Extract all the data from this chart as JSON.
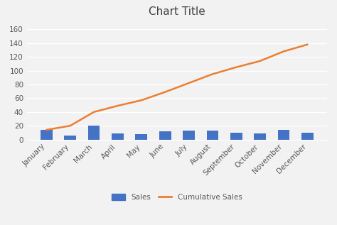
{
  "title": "Chart Title",
  "categories": [
    "January",
    "February",
    "March",
    "April",
    "May",
    "June",
    "July",
    "August",
    "September",
    "October",
    "November",
    "December"
  ],
  "sales": [
    14,
    6,
    20,
    9,
    8,
    12,
    13,
    13,
    10,
    9,
    14,
    10
  ],
  "cumulative_sales": [
    14,
    20,
    40,
    49,
    57,
    69,
    82,
    95,
    105,
    114,
    128,
    138
  ],
  "bar_color": "#4472C4",
  "line_color": "#ED7D31",
  "ylim": [
    0,
    170
  ],
  "yticks": [
    0,
    20,
    40,
    60,
    80,
    100,
    120,
    140,
    160
  ],
  "background_color": "#f2f2f2",
  "plot_bg_color": "#f2f2f2",
  "grid_color": "#ffffff",
  "title_fontsize": 11,
  "tick_fontsize": 7.5,
  "title_color": "#404040",
  "tick_color": "#595959",
  "legend_labels": [
    "Sales",
    "Cumulative Sales"
  ]
}
